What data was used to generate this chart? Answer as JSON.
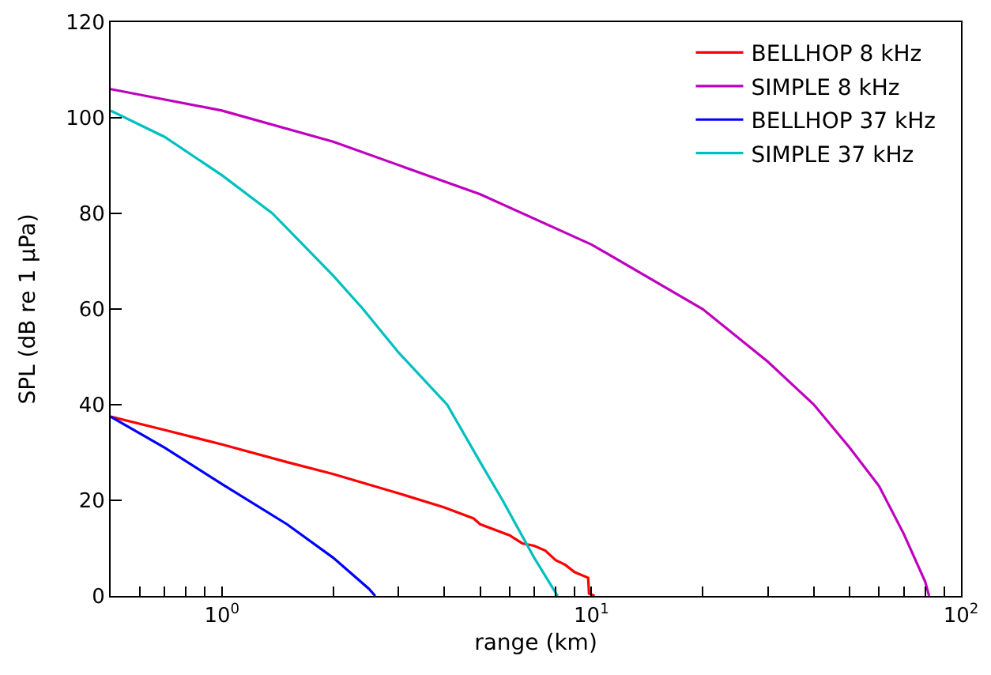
{
  "chart_data": {
    "type": "line",
    "xlabel": "range (km)",
    "ylabel": "SPL (dB re 1 μPa)",
    "log": "x",
    "xlim": [
      0.5,
      100
    ],
    "ylim": [
      0,
      120
    ],
    "xticks": [
      {
        "value": 0.6,
        "label": null
      },
      {
        "value": 0.7,
        "label": null
      },
      {
        "value": 0.8,
        "label": null
      },
      {
        "value": 0.9,
        "label": null
      },
      {
        "value": 1,
        "label": "10$^{0}$"
      },
      {
        "value": 2,
        "label": null
      },
      {
        "value": 3,
        "label": null
      },
      {
        "value": 4,
        "label": null
      },
      {
        "value": 5,
        "label": null
      },
      {
        "value": 6,
        "label": null
      },
      {
        "value": 7,
        "label": null
      },
      {
        "value": 8,
        "label": null
      },
      {
        "value": 9,
        "label": null
      },
      {
        "value": 10,
        "label": "10$^{1}$"
      },
      {
        "value": 20,
        "label": null
      },
      {
        "value": 30,
        "label": null
      },
      {
        "value": 40,
        "label": null
      },
      {
        "value": 50,
        "label": null
      },
      {
        "value": 60,
        "label": null
      },
      {
        "value": 70,
        "label": null
      },
      {
        "value": 80,
        "label": null
      },
      {
        "value": 90,
        "label": null
      },
      {
        "value": 100,
        "label": "10$^{2}$"
      }
    ],
    "yticks": [
      0,
      20,
      40,
      60,
      80,
      100,
      120
    ],
    "legend": "top right",
    "marker": "none",
    "line_style": "solid",
    "series": [
      {
        "name": "BELLHOP 8 kHz",
        "color": "#ff0000",
        "x": [
          0.5,
          0.7,
          1,
          1.5,
          2,
          3,
          4,
          4.8,
          5,
          6,
          6.5,
          7,
          7.5,
          8,
          8.5,
          9,
          9.8,
          9.85,
          10,
          10.2
        ],
        "values": [
          37.5,
          34.7,
          31.7,
          28,
          25.5,
          21.5,
          18.5,
          16.2,
          15,
          12.7,
          11,
          10.5,
          9.5,
          7.5,
          6.5,
          5,
          3.8,
          0.5,
          0.3,
          0
        ]
      },
      {
        "name": "SIMPLE 8 kHz",
        "color": "#bf00bf",
        "x": [
          0.5,
          1,
          2,
          5,
          10,
          20,
          30,
          40,
          50,
          60,
          70,
          80,
          82
        ],
        "values": [
          106,
          101.5,
          95,
          84,
          73.5,
          60,
          49,
          40,
          31,
          23,
          13,
          3,
          0
        ]
      },
      {
        "name": "BELLHOP 37 kHz",
        "color": "#0000ff",
        "x": [
          0.5,
          0.7,
          1,
          1.5,
          2,
          2.5,
          2.6
        ],
        "values": [
          37.5,
          31,
          23.4,
          15,
          8,
          1.5,
          0
        ]
      },
      {
        "name": "SIMPLE 37 kHz",
        "color": "#00bfbf",
        "x": [
          0.5,
          0.7,
          1,
          1.37,
          2,
          2.41,
          3,
          4.07,
          5,
          5.75,
          7,
          8.1
        ],
        "values": [
          101.5,
          96,
          88,
          80,
          67,
          60,
          51,
          40,
          28,
          20,
          8,
          0
        ]
      }
    ]
  }
}
